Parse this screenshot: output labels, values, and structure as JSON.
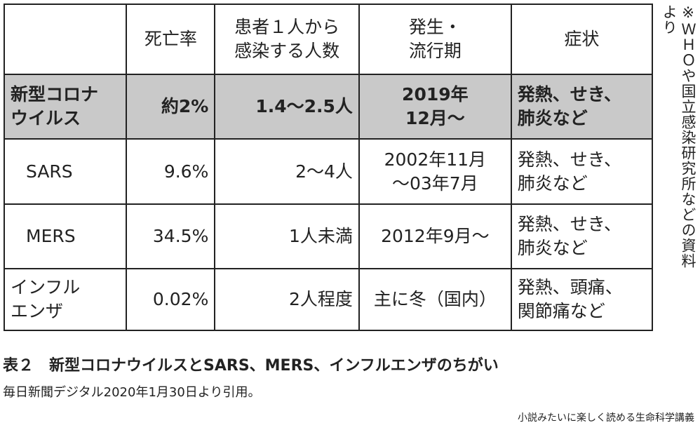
{
  "table": {
    "header": [
      [
        "死亡率"
      ],
      [
        "患者１人から",
        "感染する人数"
      ],
      [
        "発生・",
        "流行期"
      ],
      [
        "症状"
      ]
    ],
    "rows": [
      {
        "name": [
          "新型コロナ",
          "ウイルス"
        ],
        "cells": [
          [
            "約2%"
          ],
          [
            "1.4〜2.5人"
          ],
          [
            "2019年",
            "12月〜"
          ],
          [
            "発熱、せき、",
            "肺炎など"
          ]
        ]
      },
      {
        "name": [
          "SARS"
        ],
        "cells": [
          [
            "9.6%"
          ],
          [
            "2〜4人"
          ],
          [
            "2002年11月",
            "〜03年7月"
          ],
          [
            "発熱、せき、",
            "肺炎など"
          ]
        ]
      },
      {
        "name": [
          "MERS"
        ],
        "cells": [
          [
            "34.5%"
          ],
          [
            "1人未満"
          ],
          [
            "2012年9月〜"
          ],
          [
            "発熱、せき、",
            "肺炎など"
          ]
        ]
      },
      {
        "name": [
          "インフル",
          "エンザ"
        ],
        "cells": [
          [
            "0.02%"
          ],
          [
            "2人程度"
          ],
          [
            "主に冬（国内）"
          ],
          [
            "発熱、頭痛、",
            "関節痛など"
          ]
        ]
      }
    ]
  },
  "note": [
    "※ＷＨＯや国立感染研究所などの資料",
    "より"
  ],
  "caption": "表２　新型コロナウイルスとSARS、MERS、インフルエンザのちがい",
  "source": "毎日新聞デジタル2020年1月30日より引用。",
  "book": "小説みたいに楽しく読める生命科学講義"
}
